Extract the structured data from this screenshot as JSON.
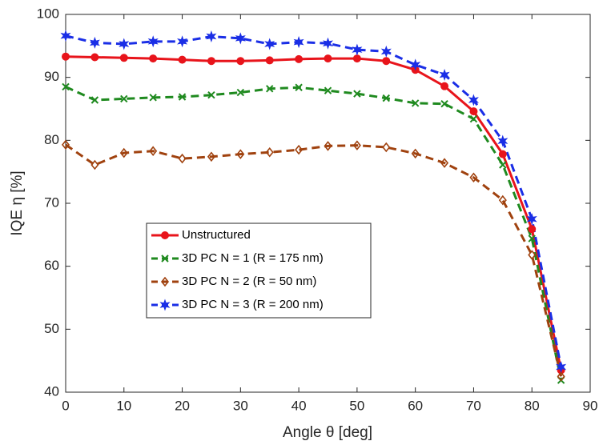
{
  "chart_data": {
    "type": "line",
    "x_label": "Angle θ [deg]",
    "y_label": "IQE η [%]",
    "x": [
      0,
      5,
      10,
      15,
      20,
      25,
      30,
      35,
      40,
      45,
      50,
      55,
      60,
      65,
      70,
      75,
      80,
      85
    ],
    "series": [
      {
        "name": "Unstructured",
        "color": "#e8141b",
        "marker": "circle",
        "dashed": false,
        "values": [
          93.3,
          93.2,
          93.1,
          93.0,
          92.8,
          92.6,
          92.6,
          92.7,
          92.9,
          93.0,
          93.0,
          92.6,
          91.2,
          88.6,
          84.6,
          77.8,
          65.9,
          43.5
        ]
      },
      {
        "name": "3D PC N = 1 (R = 175 nm)",
        "color": "#1f8a1f",
        "marker": "x",
        "dashed": true,
        "values": [
          88.5,
          86.4,
          86.6,
          86.8,
          86.9,
          87.2,
          87.6,
          88.2,
          88.4,
          87.9,
          87.4,
          86.7,
          85.9,
          85.8,
          83.4,
          76.1,
          64.4,
          41.9
        ]
      },
      {
        "name": "3D PC N = 2 (R = 50 nm)",
        "color": "#a0420f",
        "marker": "diamond",
        "dashed": true,
        "values": [
          79.3,
          76.1,
          78.0,
          78.3,
          77.1,
          77.4,
          77.8,
          78.1,
          78.5,
          79.1,
          79.2,
          78.9,
          77.9,
          76.4,
          74.1,
          70.5,
          61.8,
          42.5
        ]
      },
      {
        "name": "3D PC N = 3 (R = 200 nm)",
        "color": "#1a2ee6",
        "marker": "star",
        "dashed": true,
        "values": [
          96.6,
          95.5,
          95.3,
          95.7,
          95.7,
          96.5,
          96.2,
          95.3,
          95.6,
          95.4,
          94.4,
          94.1,
          92.0,
          90.4,
          86.4,
          79.9,
          67.5,
          44.0
        ]
      }
    ],
    "xlim": [
      0,
      90
    ],
    "xticks": [
      0,
      10,
      20,
      30,
      40,
      50,
      60,
      70,
      80,
      90
    ],
    "ylim": [
      40,
      100
    ],
    "yticks": [
      40,
      50,
      60,
      70,
      80,
      90,
      100
    ]
  }
}
